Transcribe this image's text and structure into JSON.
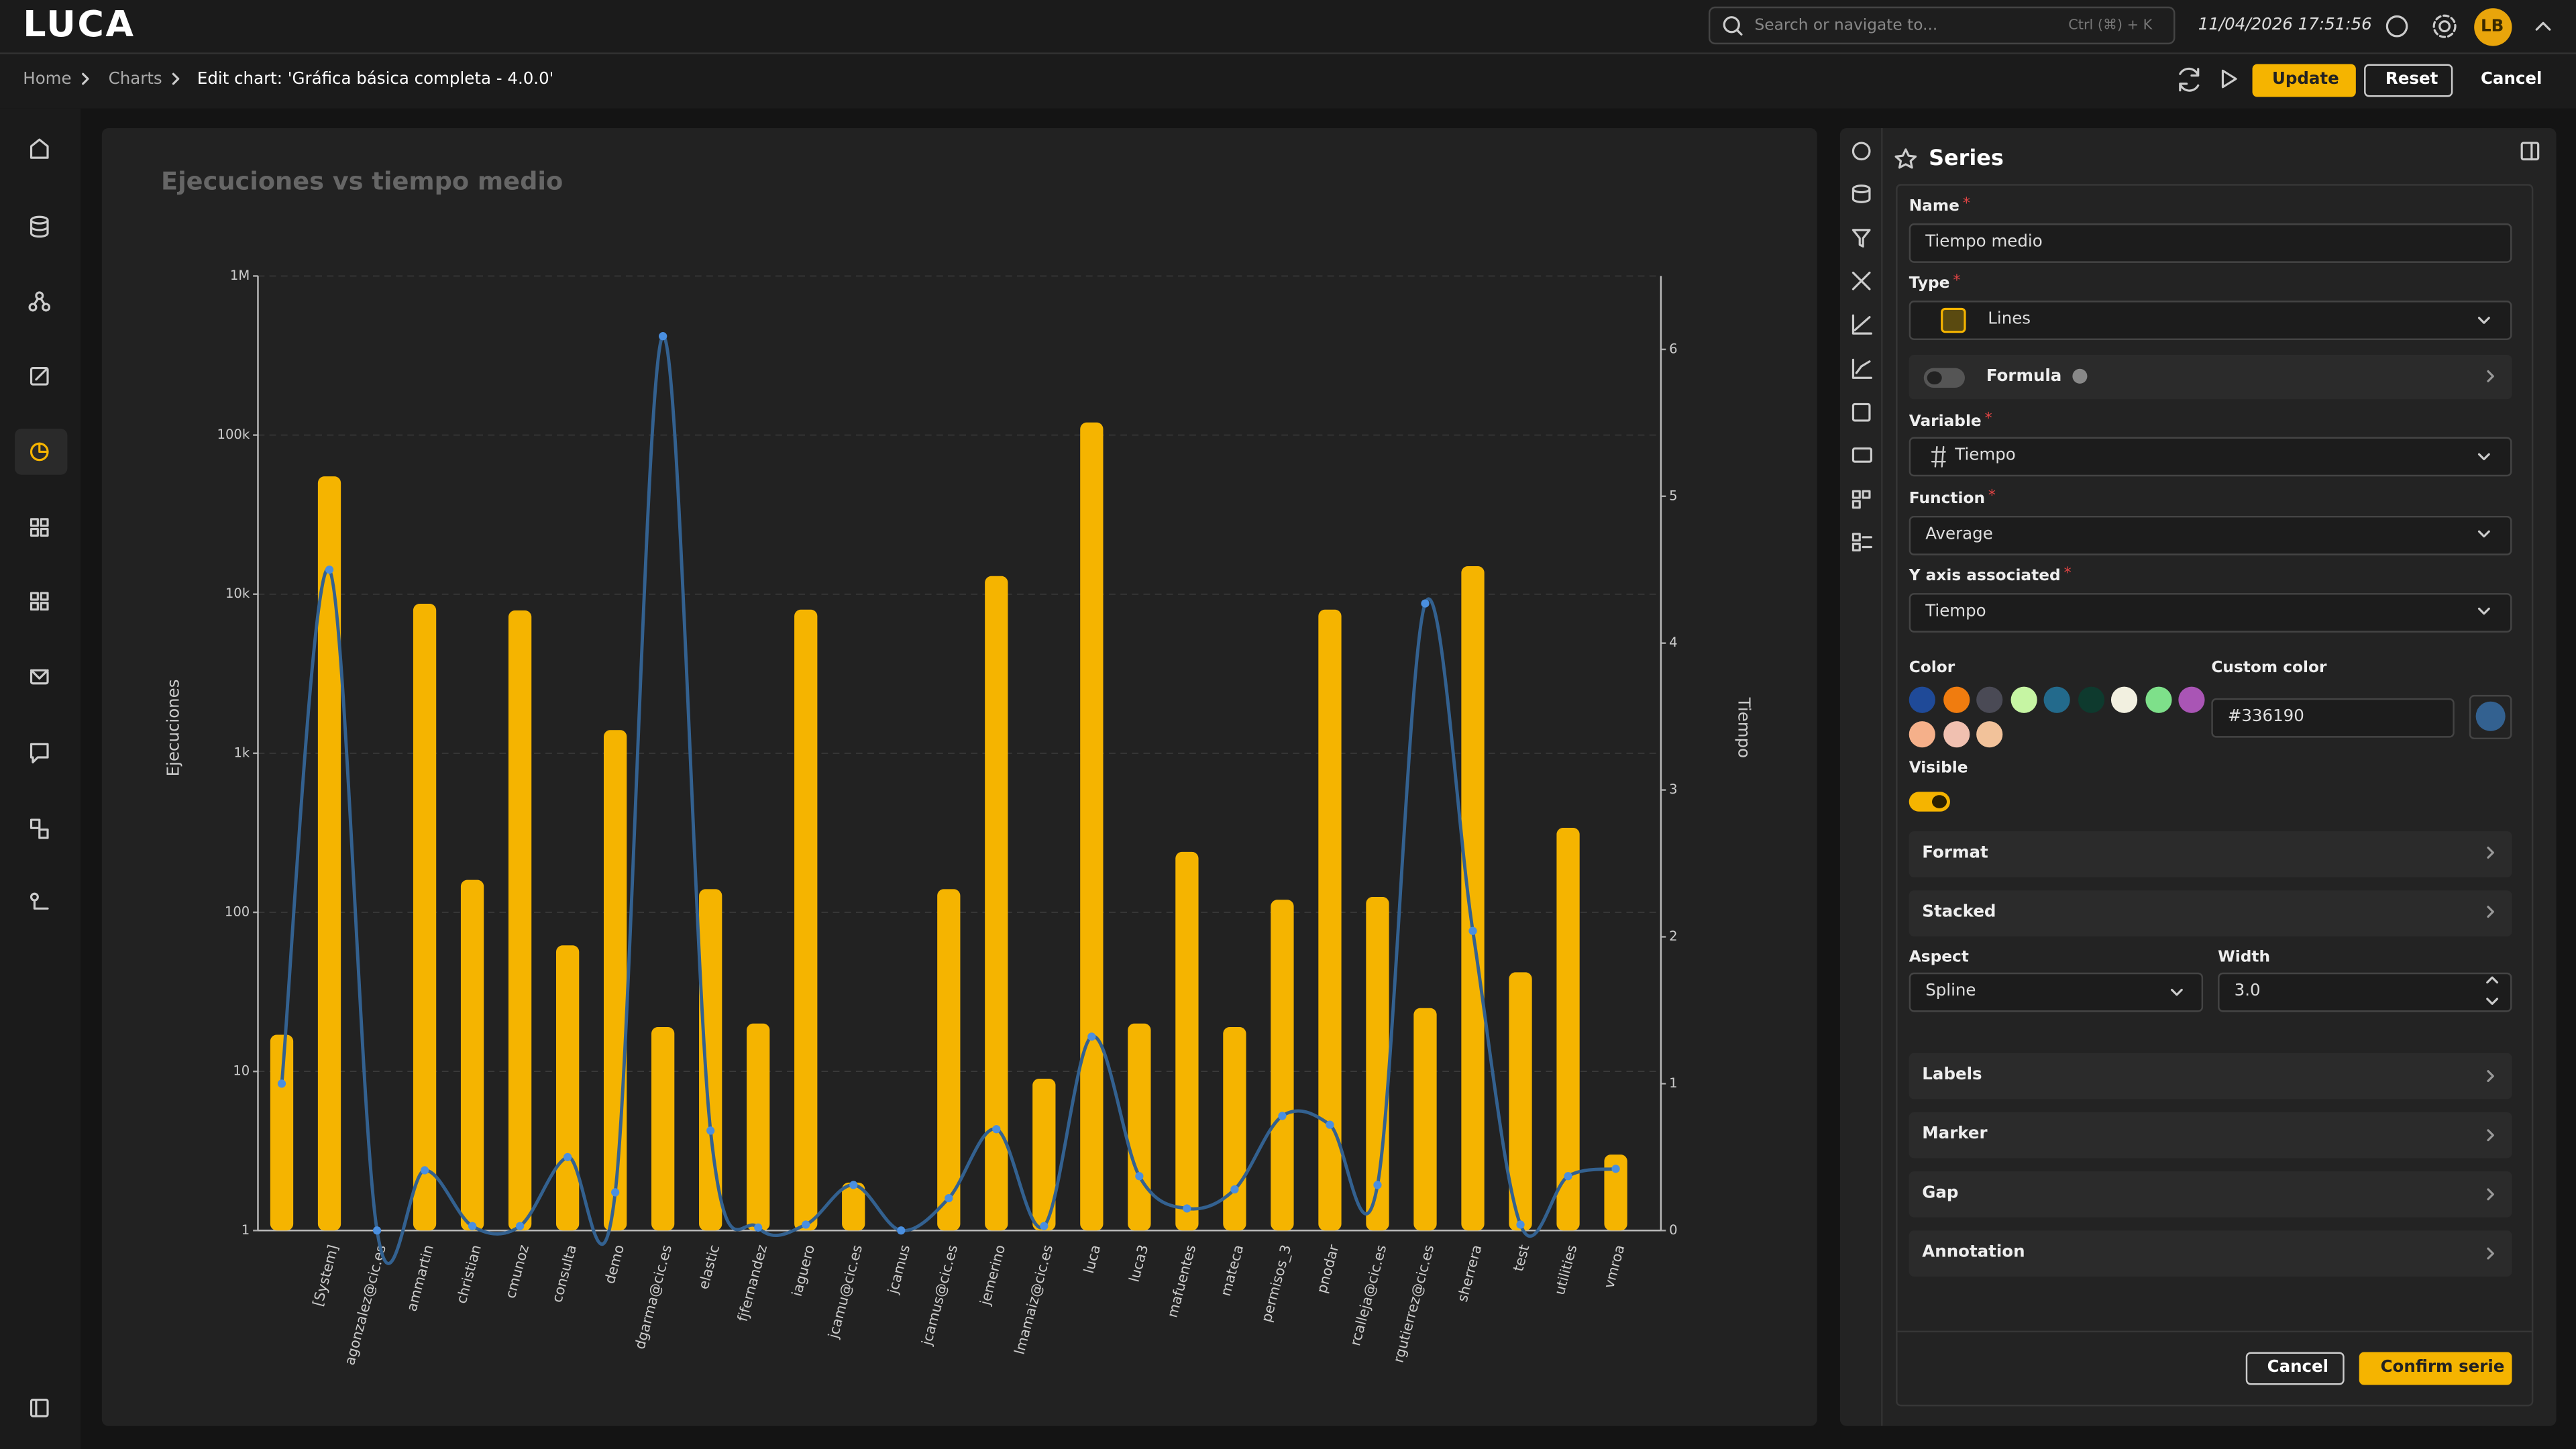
{
  "header": {
    "logo": "LUCA",
    "search_placeholder": "Search or navigate to...",
    "search_shortcut": "Ctrl (⌘) + K",
    "datetime": "11/04/2026 17:51:56",
    "avatar": "LB"
  },
  "breadcrumb": {
    "items": [
      "Home",
      "Charts"
    ],
    "current": "Edit chart: 'Gráfica básica completa - 4.0.0'"
  },
  "actions": {
    "update": "Update",
    "reset": "Reset",
    "cancel": "Cancel"
  },
  "panel": {
    "title": "Series",
    "required_mark": "*",
    "fields": {
      "name": {
        "label": "Name",
        "value": "Tiempo medio"
      },
      "type": {
        "label": "Type",
        "value": "Lines"
      },
      "formula": {
        "label": "Formula",
        "enabled": false
      },
      "variable": {
        "label": "Variable",
        "value": "Tiempo"
      },
      "function": {
        "label": "Function",
        "value": "Average"
      },
      "y_axis": {
        "label": "Y axis associated",
        "value": "Tiempo"
      },
      "color": {
        "label": "Color",
        "palette": [
          "#1f4a98",
          "#f07c0f",
          "#4a4a55",
          "#c6f5a3",
          "#236a8c",
          "#0e3a2e",
          "#f2f0e0",
          "#7ee08a",
          "#a955b5",
          "#f5b08a",
          "#f0c0b0",
          "#f2c29a"
        ]
      },
      "custom_color": {
        "label": "Custom color",
        "value": "#336190"
      },
      "visible": {
        "label": "Visible",
        "enabled": true
      },
      "aspect": {
        "label": "Aspect",
        "value": "Spline"
      },
      "width": {
        "label": "Width",
        "value": "3.0"
      }
    },
    "sections_top": [
      "Format",
      "Stacked"
    ],
    "sections_bottom": [
      "Labels",
      "Marker",
      "Gap",
      "Annotation"
    ],
    "buttons": {
      "cancel": "Cancel",
      "confirm": "Confirm serie"
    }
  },
  "chart_data": {
    "type": "bar",
    "title": "Ejecuciones vs tiempo medio",
    "ylabel": "Ejecuciones",
    "y2label": "Tiempo",
    "ylog": true,
    "grid": true,
    "categories": [
      null,
      "[System]",
      "agonzalez@cic.es",
      "ammartin",
      "christian",
      "cmunoz",
      "consulta",
      "demo",
      "dgarma@cic.es",
      "elastic",
      "fjfernandez",
      "iaguero",
      "jcamu@cic.es",
      "jcamus",
      "jcamus@cic.es",
      "jemerino",
      "lmamaiz@cic.es",
      "luca",
      "luca3",
      "mafuentes",
      "mateca",
      "permisos_3",
      "pnodar",
      "rcalleja@cic.es",
      "rgutierrez@cic.es",
      "sherrera",
      "test",
      "utilities",
      "vmroa"
    ],
    "series": [
      {
        "type": "bar",
        "color": "#f5b400",
        "values": [
          17,
          55000,
          1,
          8700,
          160,
          7900,
          62,
          1400,
          19,
          140,
          20,
          8000,
          2,
          1,
          140,
          13000,
          9,
          120000,
          20,
          240,
          19,
          120,
          8000,
          125,
          25,
          15000,
          42,
          340,
          3
        ]
      },
      {
        "type": "line",
        "color": "#336190",
        "marker_color": "#4a8fe0",
        "axis": "y2",
        "values": [
          1.0,
          4.5,
          0,
          0.41,
          0.03,
          0.03,
          0.5,
          0.26,
          6.09,
          0.68,
          0.02,
          0.04,
          0.31,
          0,
          0.22,
          0.69,
          0.03,
          1.32,
          0.37,
          0.15,
          0.28,
          0.78,
          0.72,
          0.31,
          4.27,
          2.04,
          0.04,
          0.37,
          0.42
        ]
      }
    ],
    "ylim": [
      1,
      1000000
    ],
    "yticks": [
      1,
      10,
      100,
      {
        "value": 1000,
        "label": "1k"
      },
      {
        "value": 10000,
        "label": "10k"
      },
      {
        "value": 100000,
        "label": "100k"
      },
      {
        "value": 1000000,
        "label": "1M"
      }
    ],
    "y2lim": [
      0,
      6.5
    ],
    "y2ticks": [
      0,
      1,
      2,
      3,
      4,
      5,
      6
    ]
  }
}
